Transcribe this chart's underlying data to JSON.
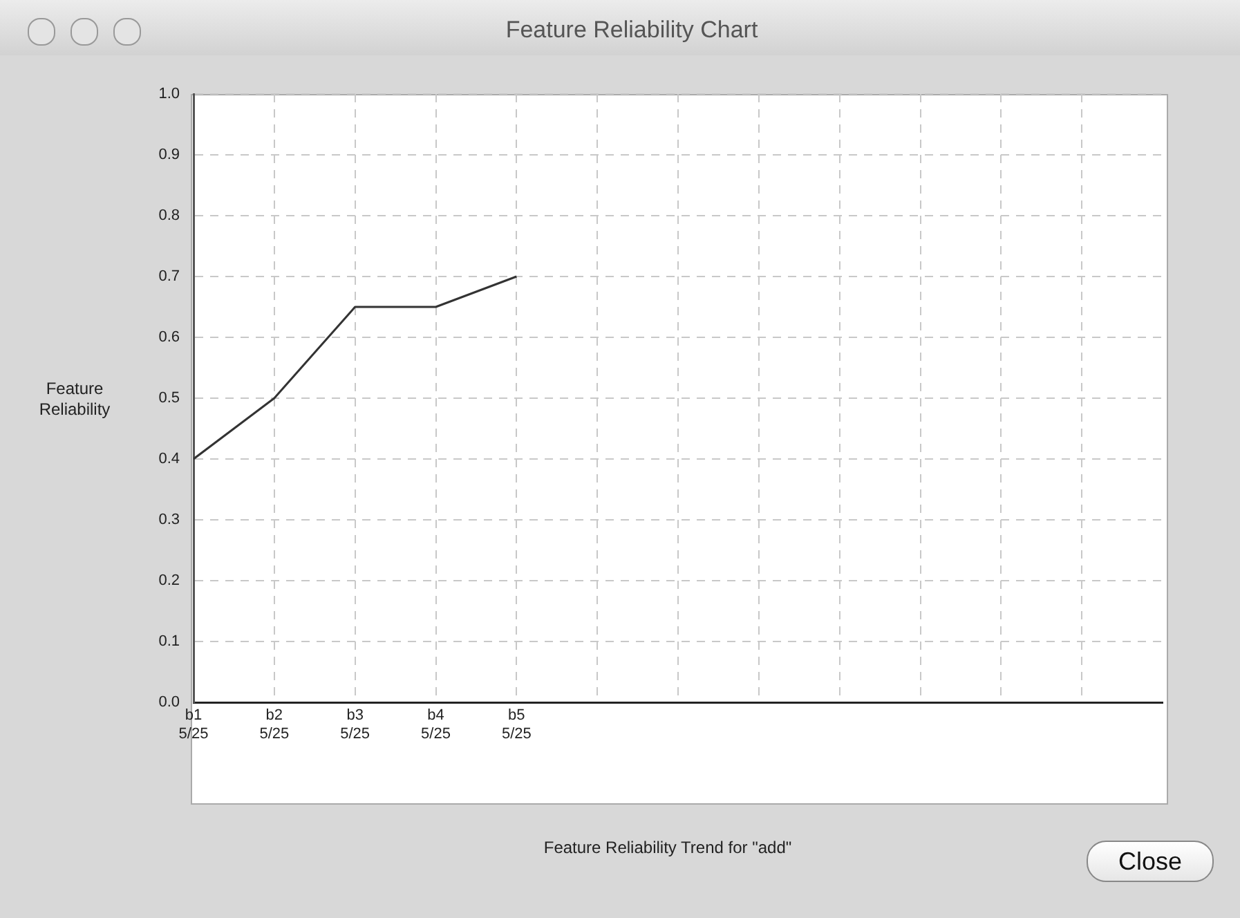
{
  "chart_data": {
    "type": "line",
    "title": "Feature Reliability Chart",
    "ylabel": "Feature Reliability",
    "categories": [
      "b1\n5/25",
      "b2\n5/25",
      "b3\n5/25",
      "b4\n5/25",
      "b5\n5/25",
      null,
      null,
      null,
      null,
      null,
      null,
      null
    ],
    "series": [
      {
        "color": "#333333",
        "values": [
          0.4,
          0.5,
          0.65,
          0.65,
          0.7,
          null,
          null,
          null,
          null,
          null,
          null,
          null
        ]
      }
    ],
    "ylim": [
      0,
      1
    ],
    "yticks": [
      {
        "value": 0,
        "label": "0.0"
      },
      0.1,
      0.2,
      0.3,
      0.4,
      0.5,
      0.6,
      0.7,
      0.8,
      0.9,
      {
        "value": 1,
        "label": "1.0"
      }
    ],
    "grid": true,
    "legend": false,
    "marker": "none",
    "line_style": "solid",
    "annotations": [
      "Feature Reliability Trend for \"add\"",
      "Close"
    ]
  }
}
